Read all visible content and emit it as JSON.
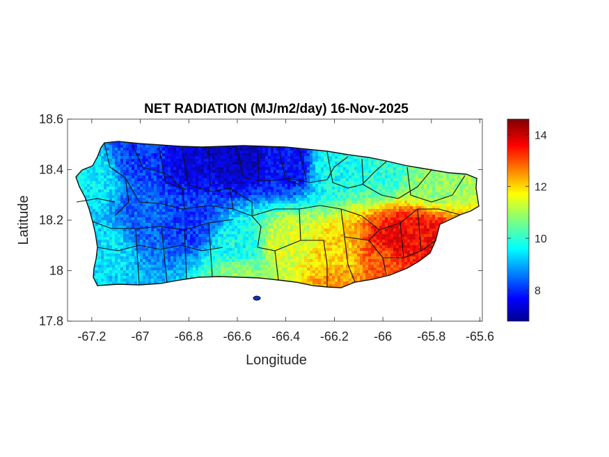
{
  "title": "NET RADIATION (MJ/m2/day) 16-Nov-2025",
  "xlabel": "Longitude",
  "ylabel": "Latitude",
  "chart_data": {
    "type": "heatmap",
    "title": "NET RADIATION (MJ/m2/day) 16-Nov-2025",
    "xlabel": "Longitude",
    "ylabel": "Latitude",
    "xlim": [
      -67.3,
      -65.59
    ],
    "ylim": [
      17.8,
      18.6
    ],
    "x_ticks": [
      -67.2,
      -67,
      -66.8,
      -66.6,
      -66.4,
      -66.2,
      -66,
      -65.8,
      -65.6
    ],
    "x_tick_labels": [
      "-67.2",
      "-67",
      "-66.8",
      "-66.6",
      "-66.4",
      "-66.2",
      "-66",
      "-65.8",
      "-65.6"
    ],
    "y_ticks": [
      17.8,
      18,
      18.2,
      18.4,
      18.6
    ],
    "y_tick_labels": [
      "17.8",
      "18",
      "18.2",
      "18.4",
      "18.6"
    ],
    "colorbar": {
      "colormap": "jet",
      "range": [
        6.8,
        14.6
      ],
      "ticks": [
        8,
        10,
        12,
        14
      ],
      "tick_labels": [
        "8",
        "10",
        "12",
        "14"
      ]
    },
    "grid": false,
    "field_samples": [
      {
        "lon": -67.2,
        "lat": 18.37,
        "value": 9.6
      },
      {
        "lon": -67.0,
        "lat": 18.45,
        "value": 8.2
      },
      {
        "lon": -66.8,
        "lat": 18.45,
        "value": 7.5
      },
      {
        "lon": -66.6,
        "lat": 18.45,
        "value": 7.3
      },
      {
        "lon": -66.4,
        "lat": 18.43,
        "value": 7.8
      },
      {
        "lon": -66.2,
        "lat": 18.42,
        "value": 9.8
      },
      {
        "lon": -66.0,
        "lat": 18.4,
        "value": 10.0
      },
      {
        "lon": -65.8,
        "lat": 18.35,
        "value": 10.8
      },
      {
        "lon": -67.15,
        "lat": 18.1,
        "value": 9.5
      },
      {
        "lon": -67.0,
        "lat": 18.22,
        "value": 8.5
      },
      {
        "lon": -66.8,
        "lat": 18.2,
        "value": 8.2
      },
      {
        "lon": -66.6,
        "lat": 18.1,
        "value": 9.8
      },
      {
        "lon": -66.4,
        "lat": 18.1,
        "value": 11.4
      },
      {
        "lon": -66.2,
        "lat": 18.05,
        "value": 12.0
      },
      {
        "lon": -66.0,
        "lat": 18.05,
        "value": 13.0
      },
      {
        "lon": -65.95,
        "lat": 18.12,
        "value": 13.8
      },
      {
        "lon": -65.85,
        "lat": 18.15,
        "value": 13.6
      },
      {
        "lon": -66.6,
        "lat": 17.98,
        "value": 10.8
      },
      {
        "lon": -66.2,
        "lat": 17.97,
        "value": 12.4
      }
    ]
  }
}
